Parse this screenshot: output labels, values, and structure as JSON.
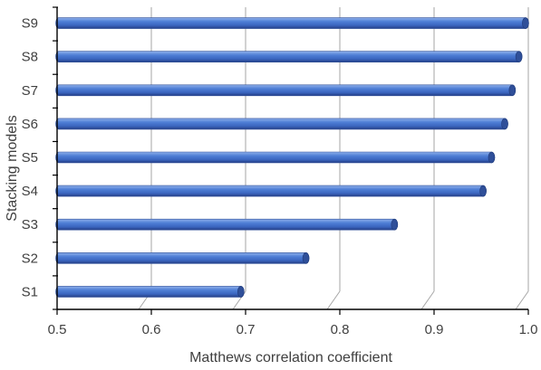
{
  "chart_data": {
    "type": "bar",
    "orientation": "horizontal",
    "style": "3d-cylinder",
    "categories": [
      "S1",
      "S2",
      "S3",
      "S4",
      "S5",
      "S6",
      "S7",
      "S8",
      "S9"
    ],
    "values": [
      0.695,
      0.764,
      0.858,
      0.952,
      0.961,
      0.975,
      0.983,
      0.99,
      0.997
    ],
    "xlabel": "Matthews correlation coefficient",
    "ylabel": "Stacking models",
    "xlim": [
      0.5,
      1.0
    ],
    "xticks": [
      "0.5",
      "0.6",
      "0.7",
      "0.8",
      "0.9",
      "1.0"
    ],
    "grid": true,
    "colors": {
      "bar": "#4472c4",
      "bar_dark": "#2f4f99",
      "bar_light": "#8fb0ea",
      "grid": "#a6a6a6",
      "axis": "#000000",
      "text": "#404040"
    }
  }
}
